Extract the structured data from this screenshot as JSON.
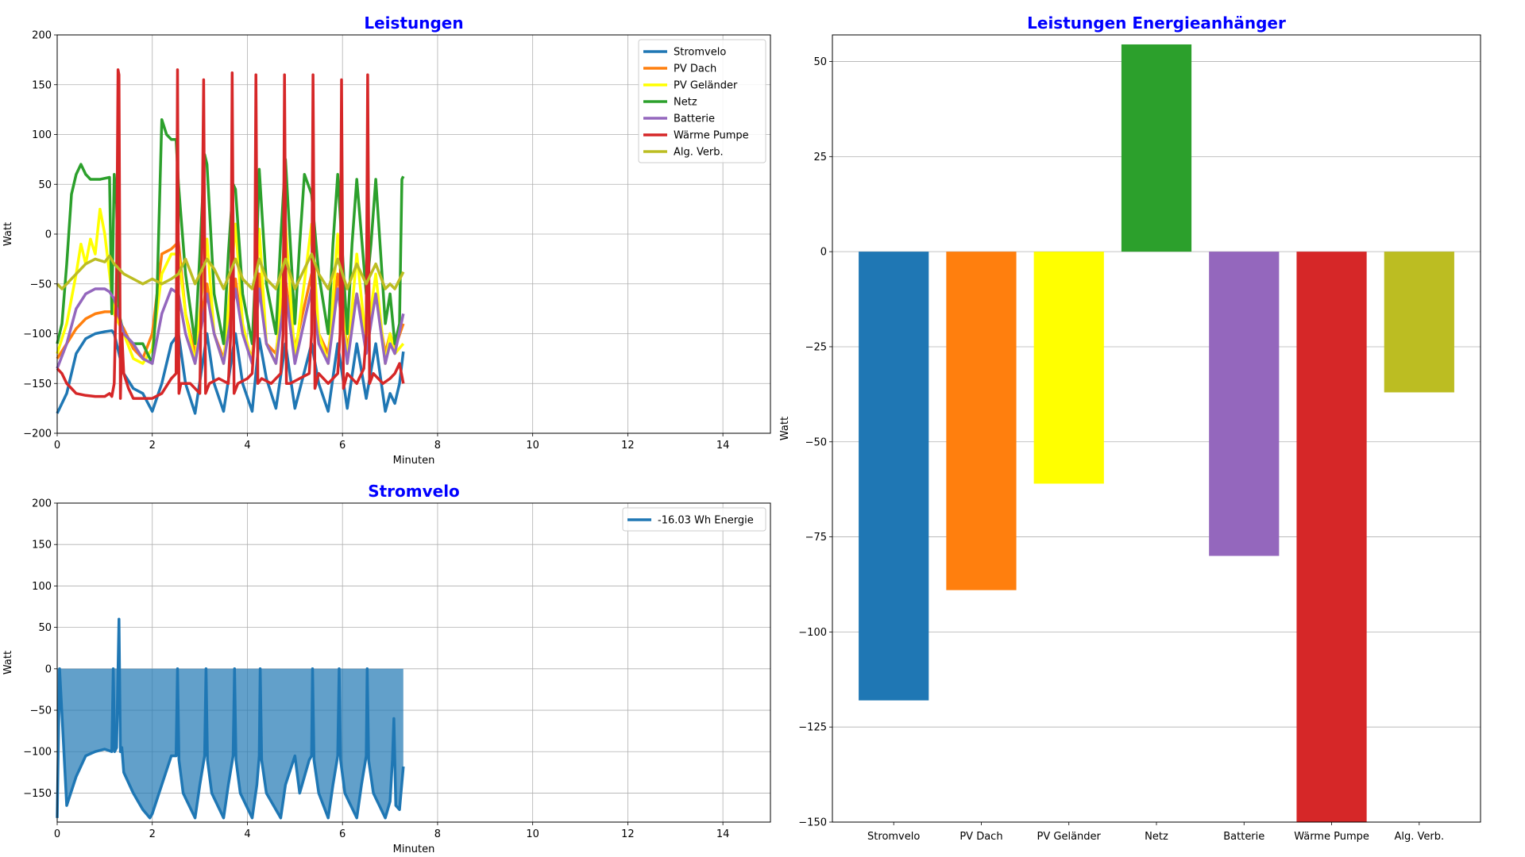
{
  "chart_data": [
    {
      "type": "line",
      "title": "Leistungen",
      "xlabel": "Minuten",
      "ylabel": "Watt",
      "xlim": [
        0,
        15
      ],
      "ylim": [
        -200,
        200
      ],
      "xticks": [
        "0",
        "2",
        "4",
        "6",
        "8",
        "10",
        "12",
        "14"
      ],
      "yticks": [
        "−200",
        "−150",
        "−100",
        "−50",
        "0",
        "50",
        "100",
        "150",
        "200"
      ],
      "grid": true,
      "legend_position": "top-right",
      "series": [
        {
          "name": "Stromvelo",
          "color": "#1f77b4",
          "x": [
            0,
            0.2,
            0.4,
            0.6,
            0.8,
            1.0,
            1.15,
            1.2,
            1.25,
            1.3,
            1.35,
            1.4,
            1.6,
            1.8,
            2.0,
            2.2,
            2.4,
            2.55,
            2.7,
            2.9,
            3.15,
            3.3,
            3.5,
            3.75,
            3.9,
            4.1,
            4.25,
            4.4,
            4.6,
            4.8,
            5.0,
            5.35,
            5.5,
            5.7,
            5.9,
            6.1,
            6.3,
            6.5,
            6.7,
            6.9,
            7.0,
            7.1,
            7.2,
            7.28
          ],
          "y": [
            -180,
            -160,
            -120,
            -105,
            -100,
            -98,
            -97,
            -100,
            -110,
            -120,
            -130,
            -140,
            -155,
            -160,
            -178,
            -150,
            -110,
            -100,
            -150,
            -180,
            -100,
            -150,
            -178,
            -100,
            -150,
            -178,
            -105,
            -145,
            -175,
            -110,
            -175,
            -110,
            -150,
            -178,
            -110,
            -175,
            -110,
            -165,
            -110,
            -178,
            -160,
            -170,
            -150,
            -118
          ]
        },
        {
          "name": "PV Dach",
          "color": "#ff7f0e",
          "x": [
            0,
            0.2,
            0.4,
            0.6,
            0.8,
            1.0,
            1.2,
            1.4,
            1.6,
            1.8,
            2.0,
            2.2,
            2.4,
            2.55,
            2.7,
            2.9,
            3.15,
            3.3,
            3.5,
            3.75,
            3.9,
            4.1,
            4.25,
            4.4,
            4.6,
            4.8,
            5.0,
            5.35,
            5.5,
            5.7,
            5.9,
            6.1,
            6.3,
            6.5,
            6.7,
            6.9,
            7.0,
            7.1,
            7.28
          ],
          "y": [
            -125,
            -110,
            -95,
            -85,
            -80,
            -78,
            -78,
            -95,
            -115,
            -125,
            -100,
            -20,
            -15,
            -8,
            -80,
            -120,
            -50,
            -100,
            -125,
            -45,
            -100,
            -125,
            -40,
            -110,
            -120,
            -45,
            -115,
            -40,
            -100,
            -120,
            -40,
            -115,
            -60,
            -110,
            -60,
            -120,
            -100,
            -115,
            -90
          ]
        },
        {
          "name": "PV Geländer",
          "color": "#ffff00",
          "x": [
            0,
            0.2,
            0.4,
            0.5,
            0.6,
            0.7,
            0.8,
            0.9,
            1.0,
            1.1,
            1.2,
            1.4,
            1.6,
            1.8,
            2.0,
            2.2,
            2.4,
            2.55,
            2.7,
            2.9,
            3.15,
            3.3,
            3.5,
            3.75,
            3.9,
            4.1,
            4.25,
            4.4,
            4.6,
            4.8,
            5.0,
            5.35,
            5.5,
            5.7,
            5.9,
            6.1,
            6.3,
            6.5,
            6.7,
            6.9,
            7.0,
            7.1,
            7.28
          ],
          "y": [
            -120,
            -90,
            -40,
            -10,
            -30,
            -5,
            -20,
            25,
            0,
            -40,
            -80,
            -100,
            -125,
            -130,
            -115,
            -40,
            -20,
            -20,
            -80,
            -130,
            -5,
            -100,
            -130,
            10,
            -90,
            -130,
            5,
            -110,
            -130,
            10,
            -125,
            10,
            -100,
            -130,
            0,
            -130,
            -20,
            -110,
            -40,
            -130,
            -100,
            -120,
            -110
          ]
        },
        {
          "name": "Netz",
          "color": "#2ca02c",
          "x": [
            0,
            0.1,
            0.2,
            0.3,
            0.4,
            0.5,
            0.6,
            0.7,
            0.9,
            1.1,
            1.15,
            1.2,
            1.25,
            1.3,
            1.4,
            1.6,
            1.8,
            2.0,
            2.1,
            2.2,
            2.3,
            2.4,
            2.5,
            2.55,
            2.7,
            2.9,
            3.0,
            3.1,
            3.15,
            3.3,
            3.5,
            3.6,
            3.7,
            3.75,
            3.9,
            4.1,
            4.2,
            4.25,
            4.4,
            4.6,
            4.7,
            4.8,
            5.0,
            5.1,
            5.2,
            5.35,
            5.5,
            5.7,
            5.8,
            5.9,
            6.1,
            6.2,
            6.3,
            6.5,
            6.6,
            6.7,
            6.9,
            7.0,
            7.1,
            7.2,
            7.25,
            7.28
          ],
          "y": [
            -110,
            -90,
            -30,
            40,
            60,
            70,
            60,
            55,
            55,
            57,
            -80,
            60,
            30,
            -80,
            -100,
            -110,
            -110,
            -130,
            -60,
            115,
            100,
            95,
            95,
            50,
            -40,
            -110,
            -20,
            80,
            70,
            -60,
            -110,
            -20,
            50,
            45,
            -60,
            -110,
            -10,
            65,
            -50,
            -100,
            -5,
            75,
            -90,
            -10,
            60,
            40,
            -40,
            -100,
            -10,
            60,
            -100,
            -10,
            55,
            -60,
            -10,
            55,
            -90,
            -60,
            -110,
            -90,
            55,
            58
          ]
        },
        {
          "name": "Batterie",
          "color": "#9467bd",
          "x": [
            0,
            0.2,
            0.4,
            0.6,
            0.8,
            1.0,
            1.1,
            1.2,
            1.4,
            1.6,
            1.8,
            2.0,
            2.2,
            2.4,
            2.55,
            2.7,
            2.9,
            3.15,
            3.3,
            3.5,
            3.75,
            3.9,
            4.1,
            4.25,
            4.4,
            4.6,
            4.8,
            5.0,
            5.35,
            5.5,
            5.7,
            5.9,
            6.1,
            6.3,
            6.5,
            6.7,
            6.9,
            7.0,
            7.1,
            7.28
          ],
          "y": [
            -135,
            -110,
            -75,
            -60,
            -55,
            -55,
            -58,
            -65,
            -100,
            -110,
            -125,
            -130,
            -80,
            -55,
            -60,
            -100,
            -130,
            -60,
            -100,
            -130,
            -55,
            -100,
            -130,
            -55,
            -110,
            -130,
            -55,
            -130,
            -55,
            -110,
            -130,
            -55,
            -130,
            -60,
            -120,
            -60,
            -130,
            -110,
            -120,
            -80
          ]
        },
        {
          "name": "Wärme Pumpe",
          "color": "#d62728",
          "x": [
            0,
            0.1,
            0.2,
            0.3,
            0.4,
            0.6,
            0.8,
            1.0,
            1.1,
            1.15,
            1.2,
            1.25,
            1.28,
            1.3,
            1.33,
            1.36,
            1.4,
            1.5,
            1.6,
            1.8,
            2.0,
            2.2,
            2.4,
            2.5,
            2.53,
            2.56,
            2.6,
            2.8,
            3.0,
            3.05,
            3.08,
            3.12,
            3.2,
            3.4,
            3.6,
            3.65,
            3.68,
            3.72,
            3.8,
            4.0,
            4.1,
            4.15,
            4.18,
            4.22,
            4.3,
            4.5,
            4.7,
            4.75,
            4.78,
            4.82,
            4.9,
            5.1,
            5.3,
            5.35,
            5.38,
            5.42,
            5.5,
            5.7,
            5.9,
            5.95,
            5.98,
            6.02,
            6.1,
            6.3,
            6.45,
            6.5,
            6.53,
            6.57,
            6.65,
            6.85,
            7.0,
            7.1,
            7.2,
            7.28
          ],
          "y": [
            -135,
            -140,
            -150,
            -155,
            -160,
            -162,
            -163,
            -163,
            -160,
            -163,
            -150,
            -40,
            165,
            160,
            -165,
            -100,
            -140,
            -155,
            -165,
            -165,
            -165,
            -160,
            -145,
            -140,
            165,
            -160,
            -150,
            -150,
            -160,
            10,
            155,
            -160,
            -150,
            -145,
            -150,
            -100,
            162,
            -160,
            -150,
            -145,
            -140,
            -100,
            160,
            -150,
            -145,
            -150,
            -140,
            -100,
            160,
            -150,
            -150,
            -145,
            -140,
            -100,
            160,
            -155,
            -140,
            -150,
            -140,
            -100,
            155,
            -155,
            -140,
            -150,
            -135,
            -100,
            160,
            -150,
            -140,
            -150,
            -145,
            -140,
            -130,
            -150
          ]
        },
        {
          "name": "Alg. Verb.",
          "color": "#bcbd22",
          "x": [
            0,
            0.1,
            0.2,
            0.4,
            0.6,
            0.8,
            1.0,
            1.1,
            1.2,
            1.4,
            1.6,
            1.8,
            2.0,
            2.2,
            2.4,
            2.55,
            2.7,
            2.9,
            3.15,
            3.3,
            3.5,
            3.75,
            3.9,
            4.1,
            4.25,
            4.4,
            4.6,
            4.8,
            5.0,
            5.35,
            5.5,
            5.7,
            5.9,
            6.1,
            6.3,
            6.5,
            6.7,
            6.9,
            7.0,
            7.1,
            7.28
          ],
          "y": [
            -50,
            -55,
            -50,
            -40,
            -30,
            -25,
            -28,
            -22,
            -30,
            -40,
            -45,
            -50,
            -45,
            -50,
            -45,
            -40,
            -25,
            -50,
            -25,
            -35,
            -55,
            -25,
            -45,
            -55,
            -25,
            -45,
            -55,
            -25,
            -55,
            -20,
            -40,
            -55,
            -25,
            -55,
            -30,
            -50,
            -30,
            -55,
            -50,
            -55,
            -38
          ]
        }
      ]
    },
    {
      "type": "area",
      "title": "Stromvelo",
      "xlabel": "Minuten",
      "ylabel": "Watt",
      "xlim": [
        0,
        15
      ],
      "ylim": [
        -185,
        200
      ],
      "xticks": [
        "0",
        "2",
        "4",
        "6",
        "8",
        "10",
        "12",
        "14"
      ],
      "yticks": [
        "−150",
        "−100",
        "−50",
        "0",
        "50",
        "100",
        "150",
        "200"
      ],
      "grid": true,
      "legend_position": "top-right",
      "series": [
        {
          "name": "-16.03 Wh Energie",
          "color": "#1f77b4",
          "x": [
            0,
            0.05,
            0.2,
            0.4,
            0.6,
            0.8,
            1.0,
            1.15,
            1.18,
            1.21,
            1.25,
            1.3,
            1.33,
            1.36,
            1.4,
            1.6,
            1.8,
            1.95,
            2.0,
            2.2,
            2.4,
            2.5,
            2.53,
            2.56,
            2.65,
            2.9,
            3.0,
            3.1,
            3.13,
            3.16,
            3.25,
            3.5,
            3.6,
            3.7,
            3.73,
            3.76,
            3.85,
            4.1,
            4.2,
            4.25,
            4.27,
            4.3,
            4.4,
            4.7,
            4.8,
            5.0,
            5.1,
            5.3,
            5.35,
            5.37,
            5.4,
            5.5,
            5.7,
            5.8,
            5.9,
            5.93,
            5.96,
            6.05,
            6.3,
            6.4,
            6.5,
            6.52,
            6.55,
            6.65,
            6.9,
            7.0,
            7.05,
            7.08,
            7.12,
            7.2,
            7.28
          ],
          "y": [
            -180,
            0,
            -165,
            -130,
            -105,
            -100,
            -97,
            -100,
            0,
            -100,
            -95,
            60,
            -100,
            -95,
            -125,
            -150,
            -170,
            -180,
            -175,
            -140,
            -105,
            -105,
            0,
            -110,
            -150,
            -180,
            -140,
            -105,
            0,
            -110,
            -150,
            -180,
            -140,
            -105,
            0,
            -110,
            -150,
            -180,
            -140,
            -105,
            0,
            -110,
            -150,
            -180,
            -140,
            -105,
            -150,
            -110,
            -105,
            0,
            -110,
            -150,
            -180,
            -140,
            -105,
            0,
            -110,
            -150,
            -180,
            -140,
            -105,
            0,
            -110,
            -150,
            -180,
            -160,
            -110,
            -60,
            -165,
            -170,
            -118
          ]
        }
      ]
    },
    {
      "type": "bar",
      "title": "Leistungen Energieanhänger",
      "ylabel": "Watt",
      "ylim": [
        -150,
        57
      ],
      "yticks": [
        "−150",
        "−125",
        "−100",
        "−75",
        "−50",
        "−25",
        "0",
        "25",
        "50"
      ],
      "grid": true,
      "categories": [
        "Stromvelo",
        "PV Dach",
        "PV Geländer",
        "Netz",
        "Batterie",
        "Wärme Pumpe",
        "Alg. Verb."
      ],
      "values": [
        -118,
        -89,
        -61,
        54.5,
        -80,
        -150,
        -37
      ],
      "colors": [
        "#1f77b4",
        "#ff7f0e",
        "#ffff00",
        "#2ca02c",
        "#9467bd",
        "#d62728",
        "#bcbd22"
      ]
    }
  ]
}
